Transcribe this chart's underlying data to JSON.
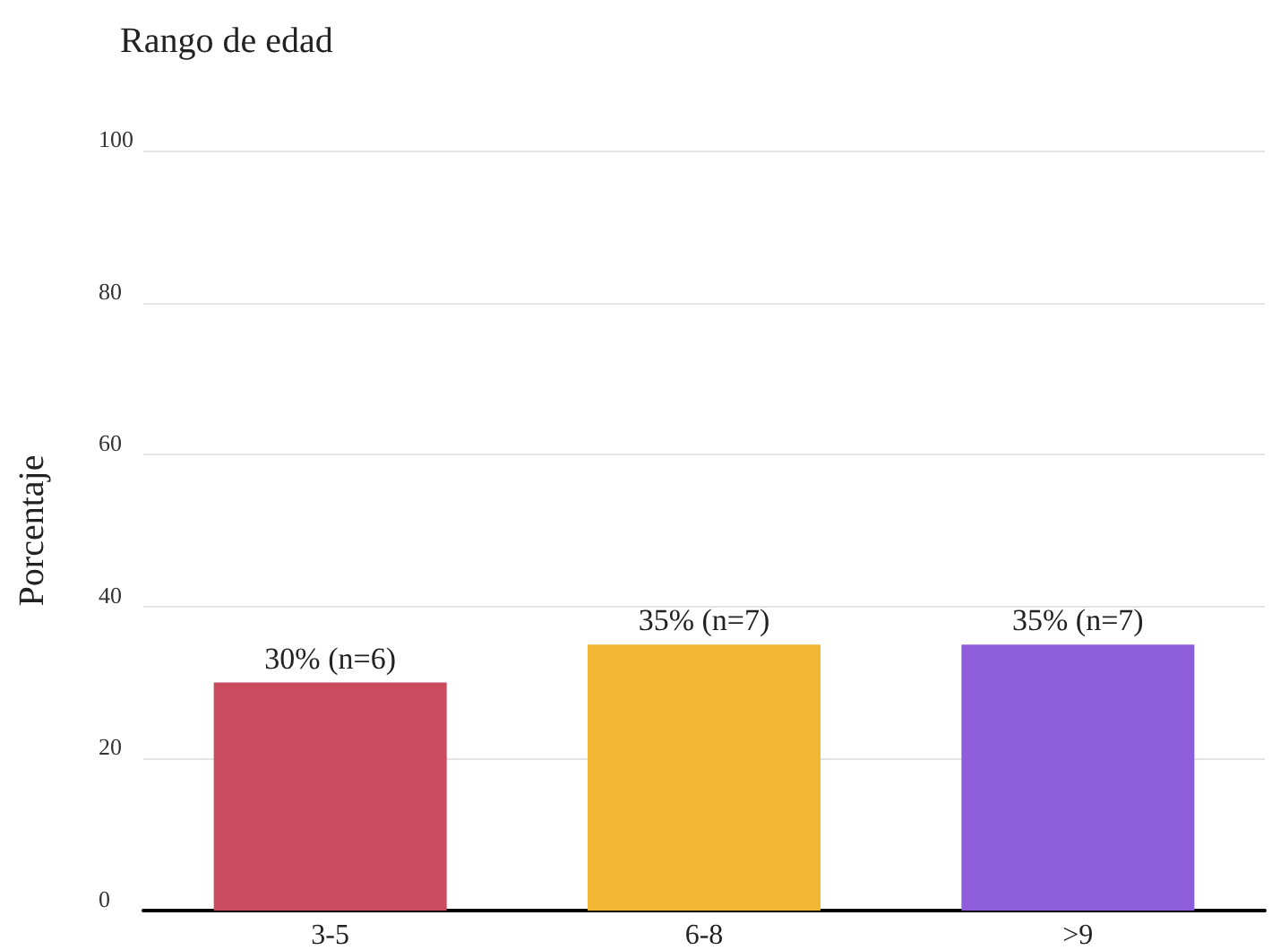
{
  "chart_data": {
    "type": "bar",
    "title": "Rango de edad",
    "ylabel": "Porcentaje",
    "categories": [
      "3-5",
      "6-8",
      ">9"
    ],
    "values": [
      30,
      35,
      35
    ],
    "colors": [
      "#c94b5d",
      "#f2b634",
      "#8d5ddb"
    ],
    "value_labels": [
      "30% (n=6)",
      "35% (n=7)",
      "35% (n=7)"
    ],
    "ylim": [
      0,
      100
    ],
    "yticks": [
      0,
      20,
      40,
      60,
      80,
      100
    ],
    "grid": "y"
  }
}
